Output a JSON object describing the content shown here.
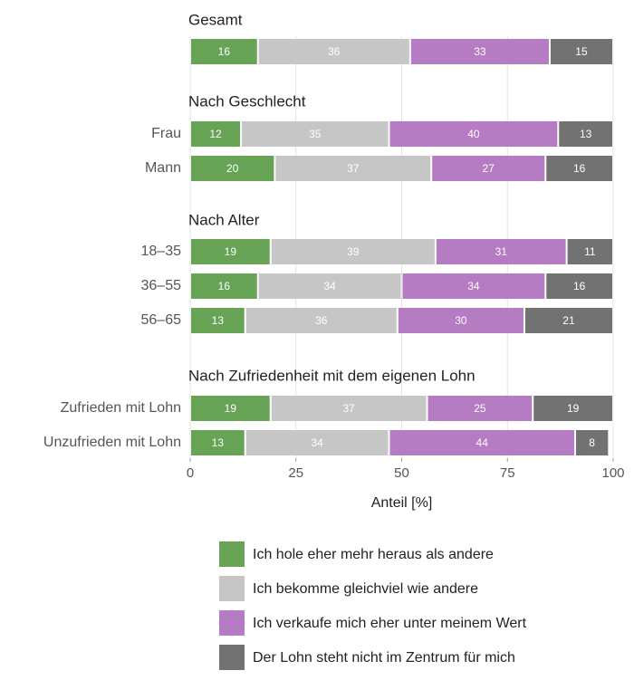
{
  "chart_data": {
    "type": "bar",
    "orientation": "horizontal-stacked",
    "xlabel": "Anteil [%]",
    "xlim": [
      0,
      100
    ],
    "xticks": [
      0,
      25,
      50,
      75,
      100
    ],
    "groups": [
      {
        "title": "Gesamt",
        "rows": [
          {
            "label": "",
            "values": [
              16,
              36,
              33,
              15
            ]
          }
        ]
      },
      {
        "title": "Nach Geschlecht",
        "rows": [
          {
            "label": "Frau",
            "values": [
              12,
              35,
              40,
              13
            ]
          },
          {
            "label": "Mann",
            "values": [
              20,
              37,
              27,
              16
            ]
          }
        ]
      },
      {
        "title": "Nach Alter",
        "rows": [
          {
            "label": "18–35",
            "values": [
              19,
              39,
              31,
              11
            ]
          },
          {
            "label": "36–55",
            "values": [
              16,
              34,
              34,
              16
            ]
          },
          {
            "label": "56–65",
            "values": [
              13,
              36,
              30,
              21
            ]
          }
        ]
      },
      {
        "title": "Nach Zufriedenheit mit dem eigenen Lohn",
        "rows": [
          {
            "label": "Zufrieden mit Lohn",
            "values": [
              19,
              37,
              25,
              19
            ]
          },
          {
            "label": "Unzufrieden mit Lohn",
            "values": [
              13,
              34,
              44,
              8
            ]
          }
        ]
      }
    ],
    "series": [
      {
        "name": "Ich hole eher mehr heraus als andere",
        "color": "#66a354"
      },
      {
        "name": "Ich bekomme gleichviel wie andere",
        "color": "#c6c6c6"
      },
      {
        "name": "Ich verkaufe mich eher unter meinem Wert",
        "color": "#b57bc3"
      },
      {
        "name": "Der Lohn steht nicht im Zentrum für mich",
        "color": "#727272"
      }
    ],
    "grid": true,
    "legend_position": "bottom"
  }
}
